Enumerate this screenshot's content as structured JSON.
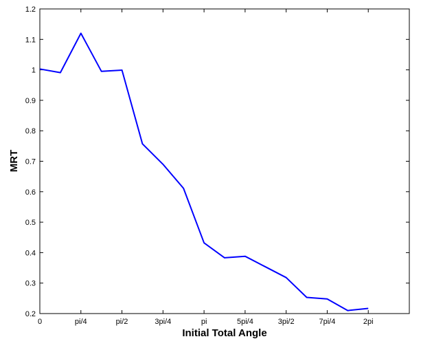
{
  "chart_data": {
    "type": "line",
    "title": "",
    "xlabel": "Initial Total Angle",
    "ylabel": "MRT",
    "xlim": [
      0,
      2.25
    ],
    "ylim": [
      0.2,
      1.2
    ],
    "x_ticks": [
      {
        "value": 0,
        "label": "0"
      },
      {
        "value": 0.25,
        "label": "pi/4"
      },
      {
        "value": 0.5,
        "label": "pi/2"
      },
      {
        "value": 0.75,
        "label": "3pi/4"
      },
      {
        "value": 1.0,
        "label": "pi"
      },
      {
        "value": 1.25,
        "label": "5pi/4"
      },
      {
        "value": 1.5,
        "label": "3pi/2"
      },
      {
        "value": 1.75,
        "label": "7pi/4"
      },
      {
        "value": 2.0,
        "label": "2pi"
      }
    ],
    "y_ticks": [
      {
        "value": 0.2,
        "label": "0.2"
      },
      {
        "value": 0.3,
        "label": "0.3"
      },
      {
        "value": 0.4,
        "label": "0.4"
      },
      {
        "value": 0.5,
        "label": "0.5"
      },
      {
        "value": 0.6,
        "label": "0.6"
      },
      {
        "value": 0.7,
        "label": "0.7"
      },
      {
        "value": 0.8,
        "label": "0.8"
      },
      {
        "value": 0.9,
        "label": "0.9"
      },
      {
        "value": 1.0,
        "label": "1"
      },
      {
        "value": 1.1,
        "label": "1.1"
      },
      {
        "value": 1.2,
        "label": "1.2"
      }
    ],
    "x_unit_note": "x values in units of pi",
    "grid": false,
    "series": [
      {
        "color": "#0000ff",
        "x": [
          0,
          0.125,
          0.25,
          0.375,
          0.5,
          0.625,
          0.75,
          0.875,
          1.0,
          1.125,
          1.25,
          1.375,
          1.5,
          1.625,
          1.75,
          1.875,
          2.0
        ],
        "y": [
          1.003,
          0.991,
          1.12,
          0.995,
          0.999,
          0.757,
          0.69,
          0.611,
          0.432,
          0.383,
          0.388,
          0.353,
          0.318,
          0.253,
          0.248,
          0.21,
          0.217
        ]
      }
    ]
  }
}
